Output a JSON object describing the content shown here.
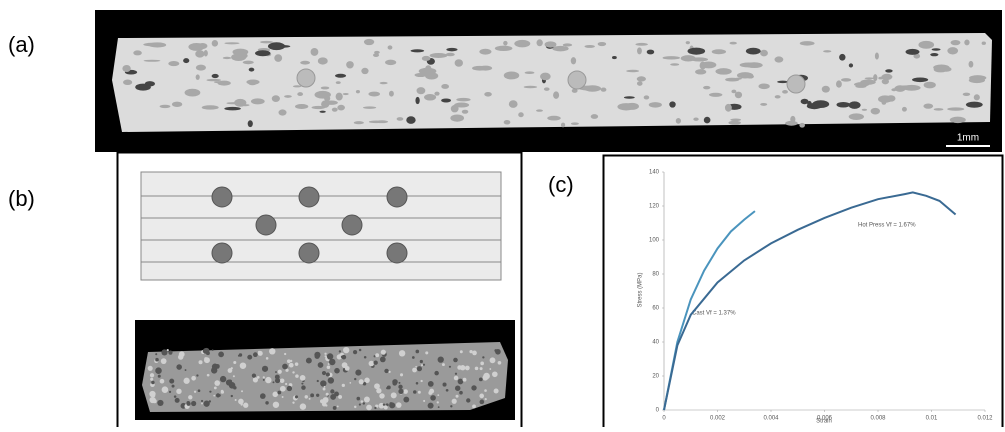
{
  "labels": {
    "a": "(a)",
    "b": "(b)",
    "c": "(c)"
  },
  "scale_bar": "1mm",
  "chart_data": {
    "type": "line",
    "x_label": "Strain",
    "y_label": "Stress (MPa)",
    "xlim": [
      0,
      0.012
    ],
    "xticks": [
      0,
      0.002,
      0.004,
      0.006,
      0.008,
      0.01,
      0.012
    ],
    "ylim": [
      0,
      140
    ],
    "yticks": [
      0,
      20,
      40,
      60,
      80,
      100,
      120,
      140
    ],
    "annotations": [
      "Hot Press Vf = 1.67%",
      "Cast Vf = 1.37%"
    ],
    "series": [
      {
        "color": "#4a94bd",
        "x": [
          0,
          0.0005,
          0.001,
          0.0015,
          0.002,
          0.0025,
          0.003,
          0.0034
        ],
        "values": [
          0,
          40,
          65,
          82,
          95,
          105,
          112,
          117
        ]
      },
      {
        "color": "#3a6a93",
        "x": [
          0,
          0.0005,
          0.001,
          0.002,
          0.003,
          0.004,
          0.005,
          0.006,
          0.007,
          0.008,
          0.009,
          0.0093,
          0.0098,
          0.0103,
          0.0109
        ],
        "values": [
          0,
          38,
          56,
          75,
          88,
          98,
          106,
          113,
          119,
          124,
          127,
          128,
          126,
          123,
          115
        ]
      }
    ]
  }
}
